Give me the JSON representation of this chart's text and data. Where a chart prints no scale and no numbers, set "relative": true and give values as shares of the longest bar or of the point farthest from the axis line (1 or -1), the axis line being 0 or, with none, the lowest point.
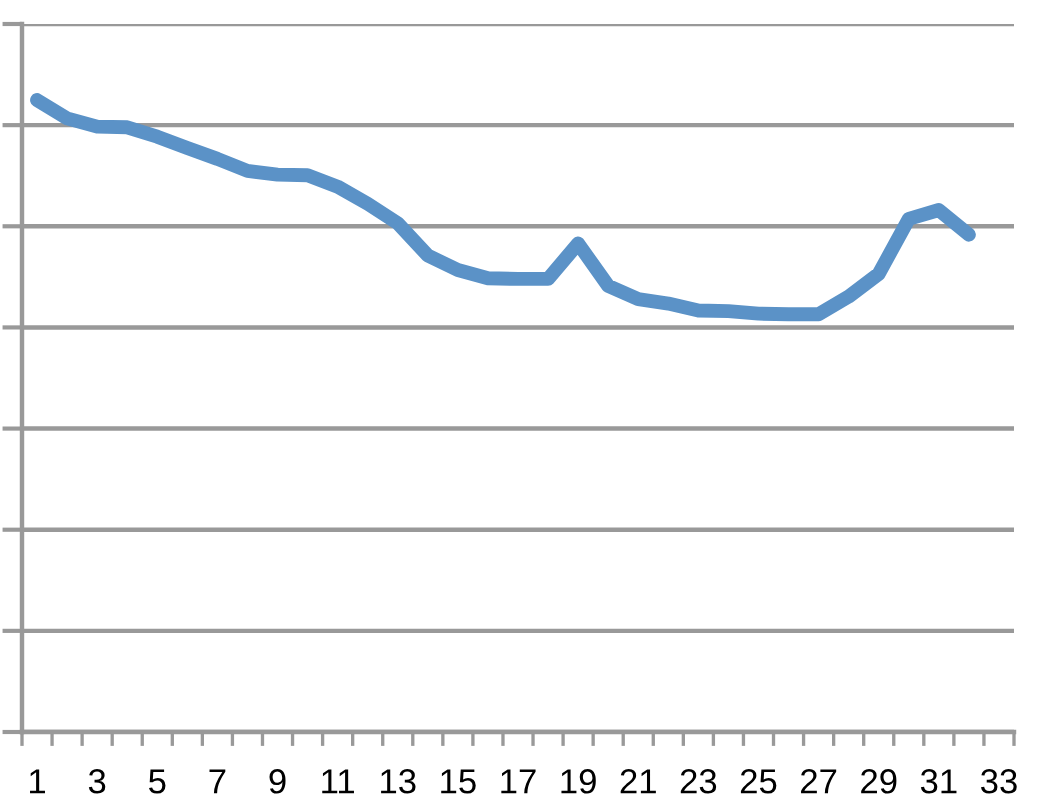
{
  "chart_data": {
    "type": "line",
    "relative": true,
    "grid": "y",
    "line_style": "solid",
    "categories": [
      "1",
      null,
      "3",
      null,
      "5",
      null,
      "7",
      null,
      "9",
      null,
      "11",
      null,
      "13",
      null,
      "15",
      null,
      "17",
      null,
      "19",
      null,
      "21",
      null,
      "23",
      null,
      "25",
      null,
      "27",
      null,
      "29",
      null,
      "31",
      null,
      "33"
    ],
    "series": [
      {
        "color": "#5b92c7",
        "values": [
          1,
          0.971,
          0.958,
          0.957,
          0.942,
          0.924,
          0.907,
          0.888,
          0.882,
          0.881,
          0.863,
          0.836,
          0.805,
          0.754,
          0.731,
          0.718,
          0.717,
          0.717,
          0.773,
          0.706,
          0.685,
          0.678,
          0.667,
          0.666,
          0.662,
          0.661,
          0.661,
          0.689,
          0.725,
          0.812,
          0.826,
          0.787,
          null
        ]
      }
    ]
  }
}
